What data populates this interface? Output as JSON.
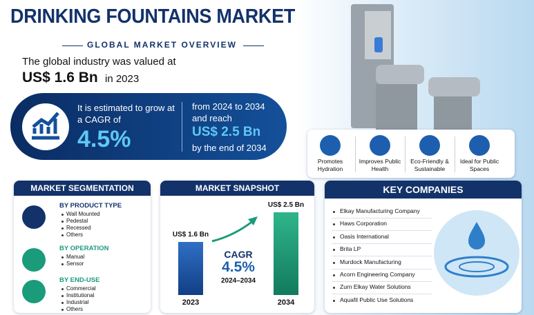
{
  "header": {
    "title": "DRINKING FOUNTAINS MARKET",
    "subtitle": "GLOBAL MARKET OVERVIEW"
  },
  "valuation": {
    "intro": "The global industry was valued at",
    "amount": "US$ 1.6 Bn",
    "year": "in 2023"
  },
  "growth": {
    "lead": "It is estimated to grow at a CAGR of",
    "cagr": "4.5%",
    "period": "from 2024 to 2034 and reach",
    "target": "US$ 2.5 Bn",
    "end": "by the end of 2034"
  },
  "benefits": [
    "Promotes Hydration",
    "Improves Public Health",
    "Eco-Friendly & Sustainable",
    "Ideal for Public Spaces"
  ],
  "segmentation": {
    "title": "MARKET SEGMENTATION",
    "groups": [
      {
        "name": "BY PRODUCT TYPE",
        "items": [
          "Wall Mounted",
          "Pedestal",
          "Recessed",
          "Others"
        ]
      },
      {
        "name": "BY OPERATION",
        "items": [
          "Manual",
          "Sensor"
        ]
      },
      {
        "name": "BY END-USE",
        "items": [
          "Commercial",
          "Institutional",
          "Industrial",
          "Others"
        ]
      }
    ]
  },
  "snapshot": {
    "title": "MARKET SNAPSHOT",
    "bars": [
      {
        "year": "2023",
        "value": 1.6,
        "label": "US$ 1.6 Bn"
      },
      {
        "year": "2034",
        "value": 2.5,
        "label": "US$ 2.5 Bn"
      }
    ],
    "cagr_label": "CAGR",
    "cagr": "4.5%",
    "period": "2024–2034"
  },
  "companies": {
    "title": "KEY COMPANIES",
    "items": [
      "Elkay Manufacturing Company",
      "Haws Corporation",
      "Oasis International",
      "Brita LP",
      "Murdock Manufacturing",
      "Acorn Engineering Company",
      "Zurn Elkay Water Solutions",
      "Aquafil Public Use Solutions"
    ]
  }
}
